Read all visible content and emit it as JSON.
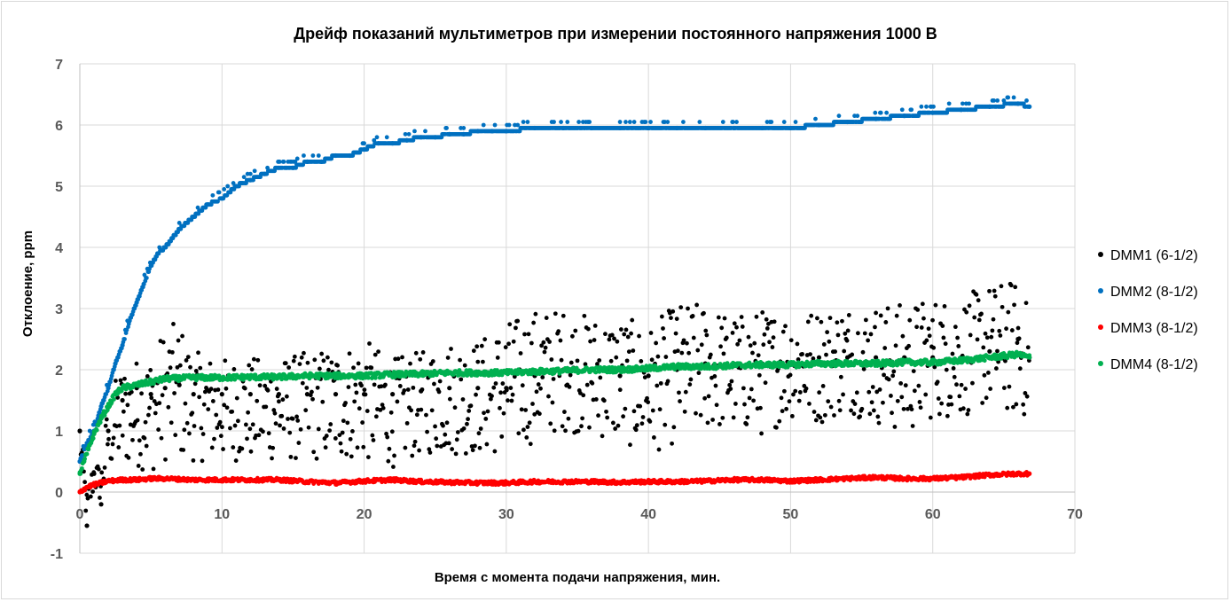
{
  "chart_data": {
    "type": "scatter",
    "title": "Дрейф показаний мультиметров при измерении постоянного напряжения 1000 В",
    "xlabel": "Время с момента подачи напряжения, мин.",
    "ylabel": "Отклоение, ppm",
    "xlim": [
      0,
      70
    ],
    "ylim": [
      -1,
      7
    ],
    "x_ticks": [
      0,
      10,
      20,
      30,
      40,
      50,
      60,
      70
    ],
    "y_ticks": [
      -1,
      0,
      1,
      2,
      3,
      4,
      5,
      6,
      7
    ],
    "grid": true,
    "legend_position": "right",
    "series": [
      {
        "name": "DMM1 (6-1/2)",
        "color": "#000000",
        "x": [
          0,
          0.5,
          1,
          1.5,
          2,
          3,
          4,
          5,
          6,
          7,
          8,
          10,
          12,
          14,
          16,
          18,
          20,
          22,
          24,
          26,
          28,
          30,
          32,
          34,
          36,
          38,
          40,
          42,
          44,
          46,
          48,
          50,
          52,
          54,
          56,
          58,
          60,
          62,
          64,
          66,
          66.8
        ],
        "y": [
          1.0,
          -0.55,
          0.3,
          -0.2,
          1.0,
          1.5,
          1.7,
          1.6,
          1.7,
          1.75,
          1.6,
          1.6,
          1.6,
          1.6,
          1.6,
          1.6,
          1.6,
          1.6,
          1.65,
          1.7,
          1.7,
          1.7,
          1.9,
          2.0,
          2.0,
          1.9,
          1.9,
          2.0,
          2.1,
          2.1,
          2.1,
          2.1,
          2.2,
          2.2,
          2.2,
          2.2,
          2.2,
          2.2,
          2.3,
          2.5,
          2.2
        ],
        "y_band": [
          [
            0.6,
            1.2
          ],
          [
            -0.6,
            0.0
          ],
          [
            0.0,
            0.6
          ],
          [
            -0.2,
            0.4
          ],
          [
            0.3,
            1.6
          ],
          [
            0.4,
            2.1
          ],
          [
            0.4,
            2.2
          ],
          [
            0.3,
            2.3
          ],
          [
            0.5,
            2.7
          ],
          [
            0.5,
            2.8
          ],
          [
            0.5,
            2.3
          ],
          [
            0.5,
            2.2
          ],
          [
            0.5,
            2.2
          ],
          [
            0.5,
            2.2
          ],
          [
            0.5,
            2.3
          ],
          [
            0.5,
            2.4
          ],
          [
            0.5,
            2.5
          ],
          [
            0.4,
            2.2
          ],
          [
            0.6,
            2.3
          ],
          [
            0.6,
            2.5
          ],
          [
            0.6,
            2.5
          ],
          [
            0.6,
            2.8
          ],
          [
            0.8,
            3.0
          ],
          [
            1.0,
            3.0
          ],
          [
            0.9,
            2.9
          ],
          [
            0.8,
            2.9
          ],
          [
            0.6,
            2.7
          ],
          [
            0.8,
            3.1
          ],
          [
            1.0,
            3.1
          ],
          [
            1.0,
            2.9
          ],
          [
            0.9,
            3.0
          ],
          [
            1.2,
            3.0
          ],
          [
            1.1,
            3.0
          ],
          [
            1.3,
            3.1
          ],
          [
            1.1,
            3.1
          ],
          [
            0.9,
            3.1
          ],
          [
            1.2,
            3.2
          ],
          [
            1.2,
            3.2
          ],
          [
            1.4,
            3.4
          ],
          [
            1.2,
            3.5
          ],
          [
            1.2,
            3.0
          ]
        ]
      },
      {
        "name": "DMM2 (8-1/2)",
        "color": "#0070c0",
        "x": [
          0,
          0.5,
          1,
          1.5,
          2,
          2.5,
          3,
          3.5,
          4,
          4.5,
          5,
          5.5,
          6,
          7,
          8,
          9,
          10,
          11,
          12,
          13,
          14,
          15,
          16,
          17,
          18,
          19,
          20,
          21,
          22,
          23,
          24,
          25,
          26,
          27,
          28,
          29,
          30,
          32,
          34,
          36,
          38,
          40,
          42,
          44,
          46,
          48,
          50,
          52,
          54,
          56,
          58,
          60,
          62,
          64,
          66,
          66.8
        ],
        "y": [
          0.5,
          0.8,
          1.0,
          1.4,
          1.7,
          2.1,
          2.4,
          2.8,
          3.1,
          3.4,
          3.7,
          3.9,
          4.0,
          4.3,
          4.5,
          4.7,
          4.8,
          5.0,
          5.1,
          5.2,
          5.3,
          5.3,
          5.4,
          5.4,
          5.5,
          5.5,
          5.6,
          5.7,
          5.7,
          5.75,
          5.8,
          5.8,
          5.85,
          5.85,
          5.9,
          5.9,
          5.9,
          5.95,
          5.95,
          5.95,
          5.95,
          5.95,
          5.95,
          5.95,
          5.95,
          5.95,
          5.95,
          6.0,
          6.05,
          6.1,
          6.15,
          6.2,
          6.25,
          6.3,
          6.35,
          6.3
        ]
      },
      {
        "name": "DMM3 (8-1/2)",
        "color": "#ff0000",
        "x": [
          0,
          0.5,
          1,
          1.5,
          2,
          3,
          4,
          5,
          6,
          8,
          10,
          12,
          14,
          16,
          18,
          20,
          22,
          24,
          26,
          28,
          30,
          32,
          34,
          36,
          38,
          40,
          42,
          44,
          46,
          48,
          50,
          52,
          54,
          56,
          58,
          60,
          62,
          64,
          66,
          66.8
        ],
        "y": [
          0.0,
          0.08,
          0.12,
          0.15,
          0.18,
          0.2,
          0.2,
          0.22,
          0.22,
          0.2,
          0.2,
          0.2,
          0.2,
          0.17,
          0.15,
          0.18,
          0.2,
          0.17,
          0.16,
          0.15,
          0.15,
          0.17,
          0.17,
          0.17,
          0.16,
          0.17,
          0.17,
          0.18,
          0.2,
          0.2,
          0.18,
          0.2,
          0.22,
          0.24,
          0.22,
          0.22,
          0.24,
          0.28,
          0.3,
          0.3
        ]
      },
      {
        "name": "DMM4 (8-1/2)",
        "color": "#00b050",
        "x": [
          0,
          0.3,
          0.6,
          1,
          1.5,
          2,
          2.5,
          3,
          4,
          5,
          6,
          8,
          10,
          12,
          14,
          16,
          18,
          20,
          22,
          24,
          26,
          28,
          30,
          32,
          34,
          36,
          38,
          40,
          42,
          44,
          46,
          48,
          50,
          52,
          54,
          56,
          58,
          60,
          62,
          64,
          66,
          66.8
        ],
        "y": [
          0.3,
          0.5,
          0.7,
          0.95,
          1.2,
          1.4,
          1.6,
          1.7,
          1.75,
          1.8,
          1.85,
          1.87,
          1.87,
          1.88,
          1.88,
          1.9,
          1.9,
          1.9,
          1.92,
          1.93,
          1.95,
          1.95,
          1.95,
          1.97,
          1.98,
          2.0,
          2.0,
          2.02,
          2.05,
          2.05,
          2.07,
          2.08,
          2.08,
          2.1,
          2.1,
          2.1,
          2.12,
          2.12,
          2.15,
          2.2,
          2.25,
          2.2
        ]
      }
    ]
  }
}
